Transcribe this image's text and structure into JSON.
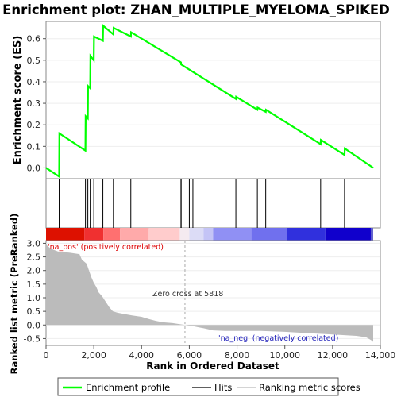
{
  "chart_data": {
    "type": "line",
    "title": "Enrichment plot: ZHAN_MULTIPLE_MYELOMA_SPIKED",
    "es_panel": {
      "ylabel": "Enrichment score (ES)",
      "ylim": [
        -0.05,
        0.68
      ],
      "yticks": [
        0.0,
        0.1,
        0.2,
        0.3,
        0.4,
        0.5,
        0.6
      ],
      "ytick_labels": [
        "0.0",
        "0.1",
        "0.2",
        "0.3",
        "0.4",
        "0.5",
        "0.6"
      ],
      "series": [
        {
          "name": "Enrichment profile",
          "color": "#00ff00",
          "x": [
            0,
            550,
            560,
            1650,
            1660,
            1750,
            1760,
            1850,
            1860,
            2000,
            2010,
            2380,
            2390,
            2820,
            2830,
            3550,
            3560,
            5650,
            5660,
            7950,
            7960,
            8850,
            8860,
            9200,
            9210,
            11500,
            11510,
            12500,
            12510,
            13700
          ],
          "y": [
            0.0,
            -0.04,
            0.16,
            0.08,
            0.24,
            0.23,
            0.38,
            0.37,
            0.52,
            0.5,
            0.61,
            0.59,
            0.66,
            0.62,
            0.65,
            0.61,
            0.63,
            0.49,
            0.48,
            0.32,
            0.33,
            0.27,
            0.28,
            0.26,
            0.27,
            0.11,
            0.13,
            0.06,
            0.09,
            0.0
          ]
        }
      ]
    },
    "hits_panel": {
      "hit_positions": [
        550,
        1650,
        1750,
        1850,
        2000,
        2380,
        2820,
        3550,
        5650,
        5660,
        6000,
        6150,
        7950,
        8850,
        9200,
        11500,
        12500
      ]
    },
    "metric_panel": {
      "ylabel": "Ranked list metric (PreRanked)",
      "xlabel": "Rank in Ordered Dataset",
      "ylim": [
        -0.75,
        3.1
      ],
      "yticks": [
        -0.5,
        0.0,
        0.5,
        1.0,
        1.5,
        2.0,
        2.5,
        3.0
      ],
      "ytick_labels": [
        "-0.5",
        "0.0",
        "0.5",
        "1.0",
        "1.5",
        "2.0",
        "2.5",
        "3.0"
      ],
      "profile": [
        [
          0,
          2.95
        ],
        [
          200,
          2.8
        ],
        [
          500,
          2.7
        ],
        [
          1000,
          2.65
        ],
        [
          1400,
          2.6
        ],
        [
          1500,
          2.4
        ],
        [
          1700,
          2.25
        ],
        [
          1800,
          2.0
        ],
        [
          1900,
          1.75
        ],
        [
          2000,
          1.55
        ],
        [
          2100,
          1.4
        ],
        [
          2200,
          1.2
        ],
        [
          2350,
          1.05
        ],
        [
          2500,
          0.85
        ],
        [
          2650,
          0.65
        ],
        [
          2800,
          0.5
        ],
        [
          3000,
          0.45
        ],
        [
          3300,
          0.4
        ],
        [
          3600,
          0.35
        ],
        [
          4000,
          0.3
        ],
        [
          4300,
          0.22
        ],
        [
          4600,
          0.15
        ],
        [
          4900,
          0.1
        ],
        [
          5300,
          0.07
        ],
        [
          5818,
          0.0
        ],
        [
          6200,
          -0.05
        ],
        [
          6600,
          -0.12
        ],
        [
          7000,
          -0.2
        ],
        [
          7500,
          -0.22
        ],
        [
          9000,
          -0.22
        ],
        [
          10000,
          -0.25
        ],
        [
          11000,
          -0.3
        ],
        [
          12000,
          -0.35
        ],
        [
          13000,
          -0.4
        ],
        [
          13400,
          -0.45
        ],
        [
          13600,
          -0.55
        ],
        [
          13700,
          -0.62
        ]
      ],
      "zero_cross_label": "Zero cross at 5818",
      "zero_cross": 5818,
      "pos_label": "'na_pos' (positively correlated)",
      "neg_label": "'na_neg' (negatively correlated)"
    },
    "x_axis": {
      "xlim": [
        0,
        14000
      ],
      "xticks": [
        0,
        2000,
        4000,
        6000,
        8000,
        10000,
        12000,
        14000
      ],
      "xtick_labels": [
        "0",
        "2,000",
        "4,000",
        "6,000",
        "8,000",
        "10,000",
        "12,000",
        "14,000"
      ]
    },
    "color_bar": {
      "segments": [
        {
          "x0": 0,
          "x1": 1600,
          "color": "#dd1100"
        },
        {
          "x0": 1600,
          "x1": 2400,
          "color": "#f03030"
        },
        {
          "x0": 2400,
          "x1": 3100,
          "color": "#ff7070"
        },
        {
          "x0": 3100,
          "x1": 4300,
          "color": "#ffaaaa"
        },
        {
          "x0": 4300,
          "x1": 5600,
          "color": "#ffcccc"
        },
        {
          "x0": 5600,
          "x1": 6000,
          "color": "#f4eaf0"
        },
        {
          "x0": 6000,
          "x1": 6600,
          "color": "#dcdcf6"
        },
        {
          "x0": 6600,
          "x1": 7000,
          "color": "#c4c4f6"
        },
        {
          "x0": 7000,
          "x1": 8600,
          "color": "#9090f4"
        },
        {
          "x0": 8600,
          "x1": 10100,
          "color": "#7070ee"
        },
        {
          "x0": 10100,
          "x1": 11700,
          "color": "#3030dd"
        },
        {
          "x0": 11700,
          "x1": 13600,
          "color": "#1000cc"
        },
        {
          "x0": 13600,
          "x1": 13700,
          "color": "#6060cc"
        }
      ]
    },
    "legend": {
      "placement": "bottom",
      "entries": [
        {
          "label": "Enrichment profile",
          "color": "#00ff00"
        },
        {
          "label": "Hits",
          "color": "#000000"
        },
        {
          "label": "Ranking metric scores",
          "color": "#bbbbbb"
        }
      ]
    }
  }
}
